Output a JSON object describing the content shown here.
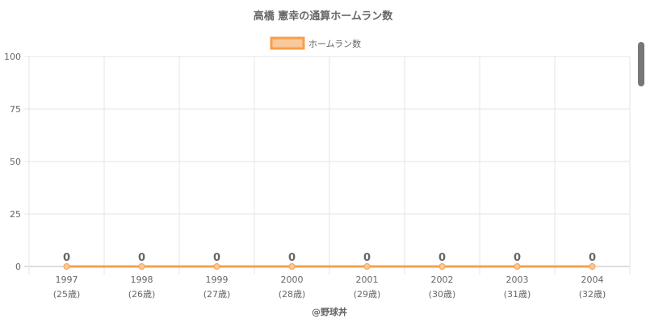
{
  "chart_data": {
    "type": "line",
    "title": "高橋 憲幸の通算ホームラン数",
    "legend_position": "top",
    "series": [
      {
        "name": "ホームラン数",
        "values": [
          0,
          0,
          0,
          0,
          0,
          0,
          0,
          0
        ],
        "color": "#f5a04a",
        "fill": "#fac89a"
      }
    ],
    "x": [
      "1997",
      "1998",
      "1999",
      "2000",
      "2001",
      "2002",
      "2003",
      "2004"
    ],
    "x_sub": [
      "(25歳)",
      "(26歳)",
      "(27歳)",
      "(28歳)",
      "(29歳)",
      "(30歳)",
      "(31歳)",
      "(32歳)"
    ],
    "xlabel": "@野球丼",
    "ylabel": "",
    "ylim": [
      0,
      100
    ],
    "yticks": [
      0,
      25,
      50,
      75,
      100
    ],
    "grid": true,
    "data_labels": true
  },
  "colors": {
    "text": "#666666",
    "grid": "#e6e6e6",
    "axis": "#bbbbbb"
  }
}
